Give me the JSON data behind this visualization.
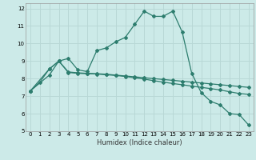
{
  "xlabel": "Humidex (Indice chaleur)",
  "bg_color": "#cceae8",
  "grid_color": "#b8d8d6",
  "line_color": "#2d7d6e",
  "xlim": [
    -0.5,
    23.5
  ],
  "ylim": [
    5,
    12.3
  ],
  "xticks": [
    0,
    1,
    2,
    3,
    4,
    5,
    6,
    7,
    8,
    9,
    10,
    11,
    12,
    13,
    14,
    15,
    16,
    17,
    18,
    19,
    20,
    21,
    22,
    23
  ],
  "yticks": [
    5,
    6,
    7,
    8,
    9,
    10,
    11,
    12
  ],
  "line1_x": [
    0,
    1,
    2,
    3,
    4,
    5,
    6,
    7,
    8,
    9,
    10,
    11,
    12,
    13,
    14,
    15,
    16,
    17,
    18,
    19,
    20,
    21,
    22,
    23
  ],
  "line1_y": [
    7.3,
    7.8,
    8.55,
    9.0,
    9.15,
    8.5,
    8.4,
    9.6,
    9.75,
    10.1,
    10.35,
    11.1,
    11.85,
    11.55,
    11.55,
    11.85,
    10.65,
    8.3,
    7.2,
    6.7,
    6.5,
    6.0,
    5.95,
    5.35
  ],
  "line2_x": [
    0,
    2,
    3,
    4,
    5,
    6,
    7,
    8,
    9,
    10,
    11,
    12,
    13,
    14,
    15,
    16,
    17,
    18,
    19,
    20,
    21,
    22,
    23
  ],
  "line2_y": [
    7.3,
    8.2,
    9.0,
    8.35,
    8.3,
    8.28,
    8.26,
    8.22,
    8.18,
    8.12,
    8.05,
    7.97,
    7.88,
    7.8,
    7.72,
    7.65,
    7.57,
    7.5,
    7.43,
    7.35,
    7.25,
    7.15,
    7.1
  ],
  "line3_x": [
    0,
    2,
    3,
    4,
    5,
    6,
    7,
    8,
    9,
    10,
    11,
    12,
    13,
    14,
    15,
    16,
    17,
    18,
    19,
    20,
    21,
    22,
    23
  ],
  "line3_y": [
    7.3,
    8.55,
    9.0,
    8.38,
    8.33,
    8.3,
    8.28,
    8.25,
    8.2,
    8.15,
    8.1,
    8.05,
    8.0,
    7.95,
    7.9,
    7.85,
    7.8,
    7.75,
    7.7,
    7.65,
    7.6,
    7.55,
    7.5
  ]
}
